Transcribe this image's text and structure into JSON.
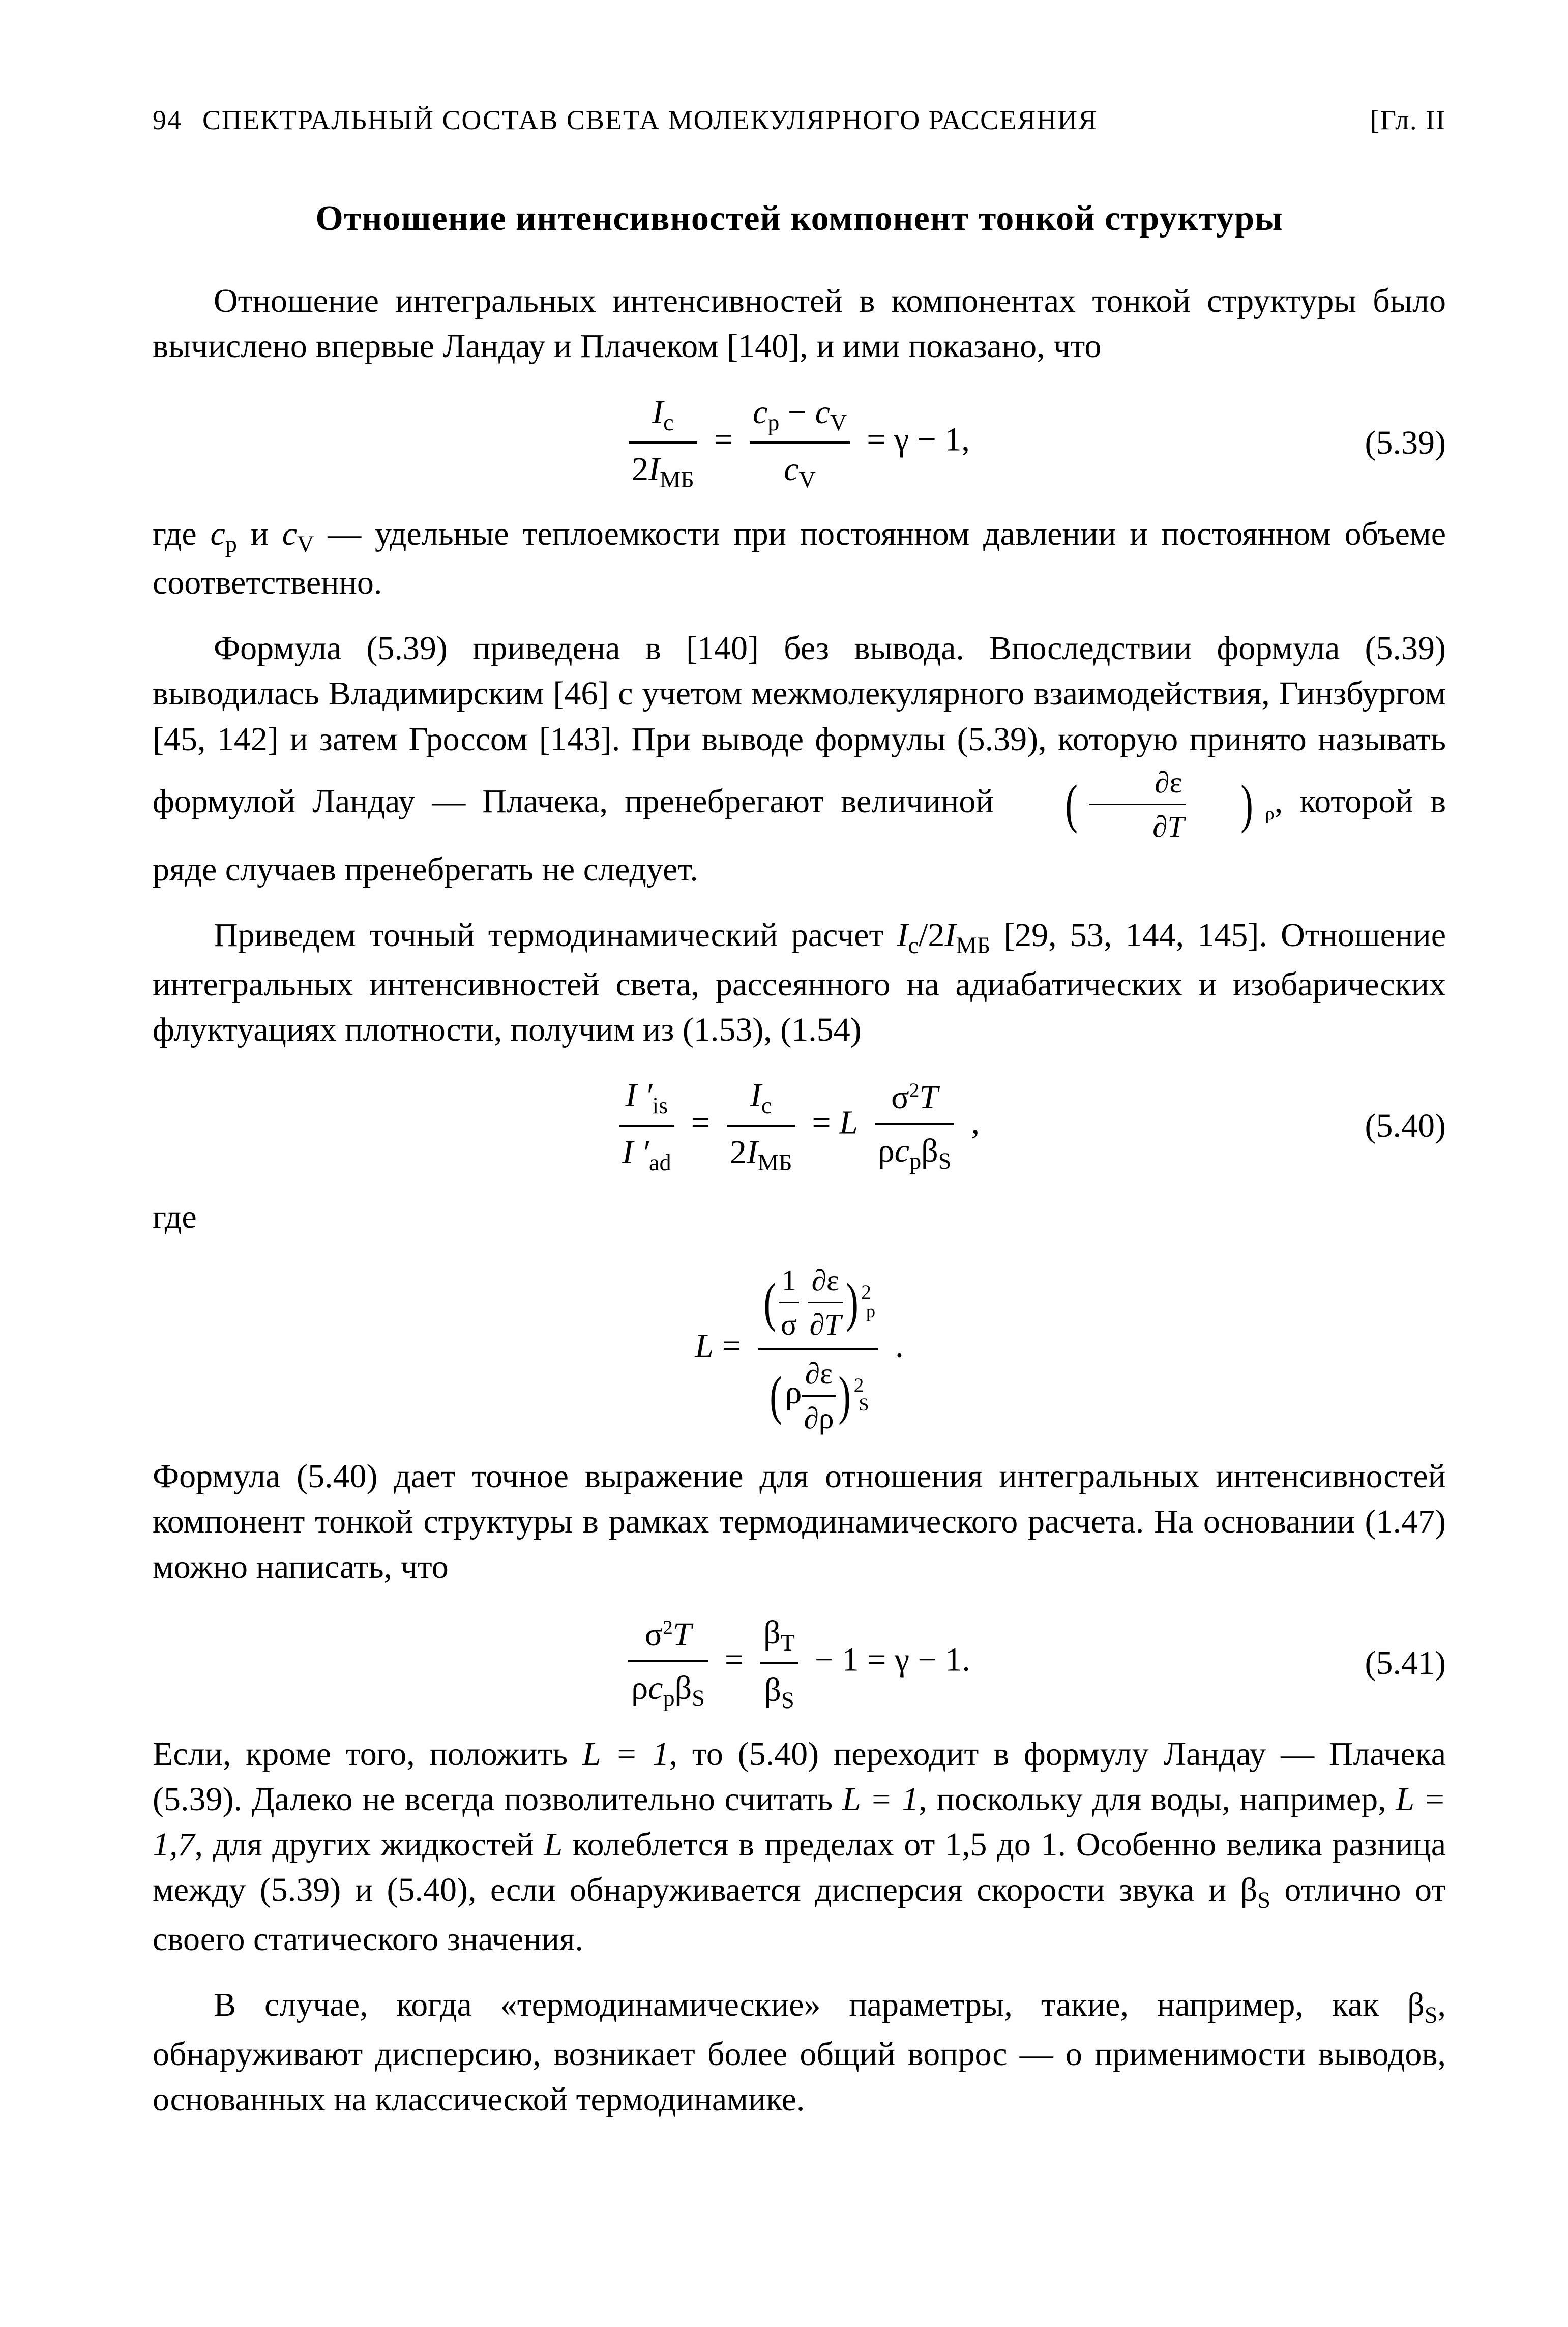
{
  "header": {
    "page_number": "94",
    "running_title": "СПЕКТРАЛЬНЫЙ СОСТАВ СВЕТА МОЛЕКУЛЯРНОГО РАССЕЯНИЯ",
    "chapter_mark": "[Гл. II"
  },
  "section_title": "Отношение интенсивностей компонент тонкой структуры",
  "p1": "Отношение интегральных интенсивностей в компонентах тонкой структуры было вычислено впервые Ландау и Плачеком [140], и ими показано, что",
  "eq539_num": "(5.39)",
  "p2_a": "где ",
  "p2_b": " и ",
  "p2_c": " — удельные теплоемкости при постоянном давлении и постоянном объеме соответственно.",
  "p3_a": "Формула (5.39) приведена в [140] без вывода. Впоследствии формула (5.39) выводилась Владимирским [46] с учетом межмолекулярного взаимодействия, Гинзбургом [45, 142] и затем Гроссом [143]. При выводе формулы (5.39), которую принято называть формулой Ландау — Плачека, пренебрегают величиной ",
  "p3_c": ", которой в ряде случаев пренебрегать не следует.",
  "p4_a": "Приведем точный термодинамический расчет ",
  "p4_b": " [29, 53, 144, 145]. Отношение интегральных интенсивностей света, рассеянного на адиабатических и изобарических флуктуациях плотности, получим из (1.53), (1.54)",
  "eq540_num": "(5.40)",
  "p5": "где",
  "p6": "Формула (5.40) дает точное выражение для отношения интегральных интенсивностей компонент тонкой структуры в рамках термодинамического расчета. На основании (1.47) можно написать, что",
  "eq541_num": "(5.41)",
  "p7_a": "Если, кроме того, положить ",
  "p7_b": ", то (5.40) переходит в формулу Ландау — Плачека (5.39). Далеко не всегда позволительно считать ",
  "p7_c": ", поскольку для воды, например, ",
  "p7_d": ", для других жидкостей ",
  "p7_e": " колеблется в пределах от 1,5 до 1. Особенно велика разница между (5.39) и (5.40), если обнаруживается дисперсия скорости звука и β",
  "p7_f": " отлично от своего статического значения.",
  "p8_a": "В случае, когда «термодинамические» параметры, такие, например, как β",
  "p8_b": ", обнаруживают дисперсию, возникает более общий вопрос — о применимости выводов, основанных на классической термодинамике.",
  "sym": {
    "cp": "c",
    "cv": "c",
    "Ic": "I",
    "IMB": "I",
    "gamma": "γ",
    "L": "L",
    "sigma": "σ",
    "rho": "ρ",
    "T": "T",
    "beta": "β",
    "eps": "ε",
    "partial": "∂",
    "p_sub": "p",
    "V_sub": "V",
    "c_sub": "c",
    "MB_sub": "МБ",
    "S_sub": "S",
    "T_sub": "T",
    "is_sub": "is",
    "ad_sub": "ad"
  },
  "vals": {
    "L1": "L = 1",
    "L17": "L = 1,7"
  }
}
